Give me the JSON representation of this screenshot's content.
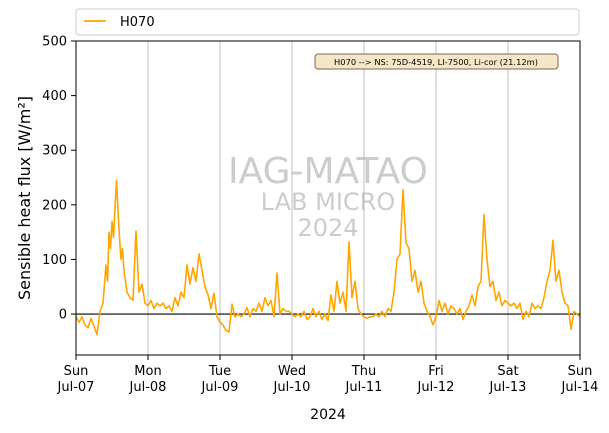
{
  "chart_data": {
    "type": "line",
    "ylabel": "Sensible heat flux [W/m²]",
    "xlabel": "2024",
    "ylim": [
      -75,
      500
    ],
    "xlim": [
      "2024-07-07T00:00",
      "2024-07-14T00:00"
    ],
    "yticks": [
      0,
      100,
      200,
      300,
      400,
      500
    ],
    "xticks": [
      {
        "date": "2024-07-07",
        "line1": "Sun",
        "line2": "Jul-07"
      },
      {
        "date": "2024-07-08",
        "line1": "Mon",
        "line2": "Jul-08"
      },
      {
        "date": "2024-07-09",
        "line1": "Tue",
        "line2": "Jul-09"
      },
      {
        "date": "2024-07-10",
        "line1": "Wed",
        "line2": "Jul-10"
      },
      {
        "date": "2024-07-11",
        "line1": "Thu",
        "line2": "Jul-11"
      },
      {
        "date": "2024-07-12",
        "line1": "Fri",
        "line2": "Jul-12"
      },
      {
        "date": "2024-07-13",
        "line1": "Sat",
        "line2": "Jul-13"
      },
      {
        "date": "2024-07-14",
        "line1": "Sun",
        "line2": "Jul-14"
      }
    ],
    "grid": "vertical",
    "zero_line": true,
    "legend": {
      "position": "top",
      "entries": [
        "H070"
      ]
    },
    "annotation": "H070 --> NS: 75D-4519, LI-7500, Li-cor (21.12m)",
    "watermark": [
      "IAG-MATAO",
      "LAB MICRO",
      "2024"
    ],
    "series": [
      {
        "name": "H070",
        "color": "#FFA500",
        "points": [
          [
            "2024-07-07T00:00",
            -5
          ],
          [
            "2024-07-07T01:00",
            -15
          ],
          [
            "2024-07-07T02:00",
            -5
          ],
          [
            "2024-07-07T03:00",
            -20
          ],
          [
            "2024-07-07T04:00",
            -25
          ],
          [
            "2024-07-07T05:00",
            -8
          ],
          [
            "2024-07-07T06:00",
            -22
          ],
          [
            "2024-07-07T07:00",
            -38
          ],
          [
            "2024-07-07T08:00",
            5
          ],
          [
            "2024-07-07T09:00",
            20
          ],
          [
            "2024-07-07T10:00",
            90
          ],
          [
            "2024-07-07T10:30",
            60
          ],
          [
            "2024-07-07T11:00",
            150
          ],
          [
            "2024-07-07T11:30",
            120
          ],
          [
            "2024-07-07T12:00",
            170
          ],
          [
            "2024-07-07T12:30",
            140
          ],
          [
            "2024-07-07T13:00",
            195
          ],
          [
            "2024-07-07T13:30",
            245
          ],
          [
            "2024-07-07T14:00",
            190
          ],
          [
            "2024-07-07T14:30",
            140
          ],
          [
            "2024-07-07T15:00",
            100
          ],
          [
            "2024-07-07T15:30",
            120
          ],
          [
            "2024-07-07T16:00",
            80
          ],
          [
            "2024-07-07T17:00",
            40
          ],
          [
            "2024-07-07T18:00",
            30
          ],
          [
            "2024-07-07T19:00",
            25
          ],
          [
            "2024-07-07T20:00",
            152
          ],
          [
            "2024-07-07T21:00",
            40
          ],
          [
            "2024-07-07T22:00",
            55
          ],
          [
            "2024-07-07T23:00",
            20
          ],
          [
            "2024-07-08T00:00",
            15
          ],
          [
            "2024-07-08T01:00",
            25
          ],
          [
            "2024-07-08T02:00",
            10
          ],
          [
            "2024-07-08T03:00",
            20
          ],
          [
            "2024-07-08T04:00",
            15
          ],
          [
            "2024-07-08T05:00",
            20
          ],
          [
            "2024-07-08T06:00",
            10
          ],
          [
            "2024-07-08T07:00",
            15
          ],
          [
            "2024-07-08T08:00",
            5
          ],
          [
            "2024-07-08T09:00",
            30
          ],
          [
            "2024-07-08T10:00",
            15
          ],
          [
            "2024-07-08T11:00",
            40
          ],
          [
            "2024-07-08T12:00",
            30
          ],
          [
            "2024-07-08T13:00",
            90
          ],
          [
            "2024-07-08T14:00",
            55
          ],
          [
            "2024-07-08T15:00",
            85
          ],
          [
            "2024-07-08T16:00",
            60
          ],
          [
            "2024-07-08T17:00",
            110
          ],
          [
            "2024-07-08T18:00",
            80
          ],
          [
            "2024-07-08T19:00",
            50
          ],
          [
            "2024-07-08T20:00",
            35
          ],
          [
            "2024-07-08T21:00",
            10
          ],
          [
            "2024-07-08T22:00",
            38
          ],
          [
            "2024-07-08T23:00",
            -5
          ],
          [
            "2024-07-09T00:00",
            -15
          ],
          [
            "2024-07-09T01:00",
            -20
          ],
          [
            "2024-07-09T02:00",
            -30
          ],
          [
            "2024-07-09T03:00",
            -33
          ],
          [
            "2024-07-09T04:00",
            18
          ],
          [
            "2024-07-09T05:00",
            -5
          ],
          [
            "2024-07-09T06:00",
            0
          ],
          [
            "2024-07-09T07:00",
            -5
          ],
          [
            "2024-07-09T08:00",
            0
          ],
          [
            "2024-07-09T09:00",
            12
          ],
          [
            "2024-07-09T10:00",
            -5
          ],
          [
            "2024-07-09T11:00",
            10
          ],
          [
            "2024-07-09T12:00",
            5
          ],
          [
            "2024-07-09T13:00",
            20
          ],
          [
            "2024-07-09T14:00",
            5
          ],
          [
            "2024-07-09T15:00",
            30
          ],
          [
            "2024-07-09T16:00",
            15
          ],
          [
            "2024-07-09T17:00",
            25
          ],
          [
            "2024-07-09T18:00",
            -5
          ],
          [
            "2024-07-09T19:00",
            75
          ],
          [
            "2024-07-09T20:00",
            0
          ],
          [
            "2024-07-09T21:00",
            10
          ],
          [
            "2024-07-09T22:00",
            5
          ],
          [
            "2024-07-09T23:00",
            5
          ],
          [
            "2024-07-10T00:00",
            0
          ],
          [
            "2024-07-10T01:00",
            -5
          ],
          [
            "2024-07-10T02:00",
            0
          ],
          [
            "2024-07-10T03:00",
            -5
          ],
          [
            "2024-07-10T04:00",
            5
          ],
          [
            "2024-07-10T05:00",
            -10
          ],
          [
            "2024-07-10T06:00",
            -5
          ],
          [
            "2024-07-10T07:00",
            10
          ],
          [
            "2024-07-10T08:00",
            -5
          ],
          [
            "2024-07-10T09:00",
            5
          ],
          [
            "2024-07-10T10:00",
            -10
          ],
          [
            "2024-07-10T11:00",
            0
          ],
          [
            "2024-07-10T12:00",
            -12
          ],
          [
            "2024-07-10T13:00",
            35
          ],
          [
            "2024-07-10T14:00",
            5
          ],
          [
            "2024-07-10T15:00",
            60
          ],
          [
            "2024-07-10T16:00",
            20
          ],
          [
            "2024-07-10T17:00",
            40
          ],
          [
            "2024-07-10T18:00",
            5
          ],
          [
            "2024-07-10T19:00",
            132
          ],
          [
            "2024-07-10T20:00",
            30
          ],
          [
            "2024-07-10T21:00",
            60
          ],
          [
            "2024-07-10T22:00",
            10
          ],
          [
            "2024-07-10T23:00",
            0
          ],
          [
            "2024-07-11T00:00",
            -5
          ],
          [
            "2024-07-11T01:00",
            -8
          ],
          [
            "2024-07-11T02:00",
            -5
          ],
          [
            "2024-07-11T03:00",
            -5
          ],
          [
            "2024-07-11T04:00",
            0
          ],
          [
            "2024-07-11T05:00",
            -5
          ],
          [
            "2024-07-11T06:00",
            5
          ],
          [
            "2024-07-11T07:00",
            -5
          ],
          [
            "2024-07-11T08:00",
            10
          ],
          [
            "2024-07-11T09:00",
            5
          ],
          [
            "2024-07-11T10:00",
            40
          ],
          [
            "2024-07-11T11:00",
            100
          ],
          [
            "2024-07-11T12:00",
            110
          ],
          [
            "2024-07-11T13:00",
            228
          ],
          [
            "2024-07-11T14:00",
            130
          ],
          [
            "2024-07-11T15:00",
            120
          ],
          [
            "2024-07-11T16:00",
            60
          ],
          [
            "2024-07-11T17:00",
            80
          ],
          [
            "2024-07-11T18:00",
            40
          ],
          [
            "2024-07-11T19:00",
            60
          ],
          [
            "2024-07-11T20:00",
            20
          ],
          [
            "2024-07-11T21:00",
            5
          ],
          [
            "2024-07-11T22:00",
            -5
          ],
          [
            "2024-07-11T23:00",
            -20
          ],
          [
            "2024-07-12T00:00",
            -5
          ],
          [
            "2024-07-12T01:00",
            25
          ],
          [
            "2024-07-12T02:00",
            5
          ],
          [
            "2024-07-12T03:00",
            20
          ],
          [
            "2024-07-12T04:00",
            0
          ],
          [
            "2024-07-12T05:00",
            15
          ],
          [
            "2024-07-12T06:00",
            10
          ],
          [
            "2024-07-12T07:00",
            0
          ],
          [
            "2024-07-12T08:00",
            10
          ],
          [
            "2024-07-12T09:00",
            -10
          ],
          [
            "2024-07-12T10:00",
            5
          ],
          [
            "2024-07-12T11:00",
            15
          ],
          [
            "2024-07-12T12:00",
            35
          ],
          [
            "2024-07-12T13:00",
            15
          ],
          [
            "2024-07-12T14:00",
            50
          ],
          [
            "2024-07-12T15:00",
            60
          ],
          [
            "2024-07-12T16:00",
            182
          ],
          [
            "2024-07-12T17:00",
            100
          ],
          [
            "2024-07-12T18:00",
            50
          ],
          [
            "2024-07-12T19:00",
            60
          ],
          [
            "2024-07-12T20:00",
            25
          ],
          [
            "2024-07-12T21:00",
            40
          ],
          [
            "2024-07-12T22:00",
            15
          ],
          [
            "2024-07-12T23:00",
            25
          ],
          [
            "2024-07-13T00:00",
            20
          ],
          [
            "2024-07-13T01:00",
            15
          ],
          [
            "2024-07-13T02:00",
            20
          ],
          [
            "2024-07-13T03:00",
            10
          ],
          [
            "2024-07-13T04:00",
            20
          ],
          [
            "2024-07-13T05:00",
            -10
          ],
          [
            "2024-07-13T06:00",
            5
          ],
          [
            "2024-07-13T07:00",
            -5
          ],
          [
            "2024-07-13T08:00",
            20
          ],
          [
            "2024-07-13T09:00",
            10
          ],
          [
            "2024-07-13T10:00",
            15
          ],
          [
            "2024-07-13T11:00",
            10
          ],
          [
            "2024-07-13T12:00",
            30
          ],
          [
            "2024-07-13T13:00",
            60
          ],
          [
            "2024-07-13T14:00",
            80
          ],
          [
            "2024-07-13T15:00",
            135
          ],
          [
            "2024-07-13T16:00",
            60
          ],
          [
            "2024-07-13T17:00",
            80
          ],
          [
            "2024-07-13T18:00",
            40
          ],
          [
            "2024-07-13T19:00",
            20
          ],
          [
            "2024-07-13T20:00",
            15
          ],
          [
            "2024-07-13T21:00",
            -28
          ],
          [
            "2024-07-13T22:00",
            5
          ],
          [
            "2024-07-13T23:00",
            0
          ],
          [
            "2024-07-14T00:00",
            -5
          ]
        ]
      }
    ]
  }
}
